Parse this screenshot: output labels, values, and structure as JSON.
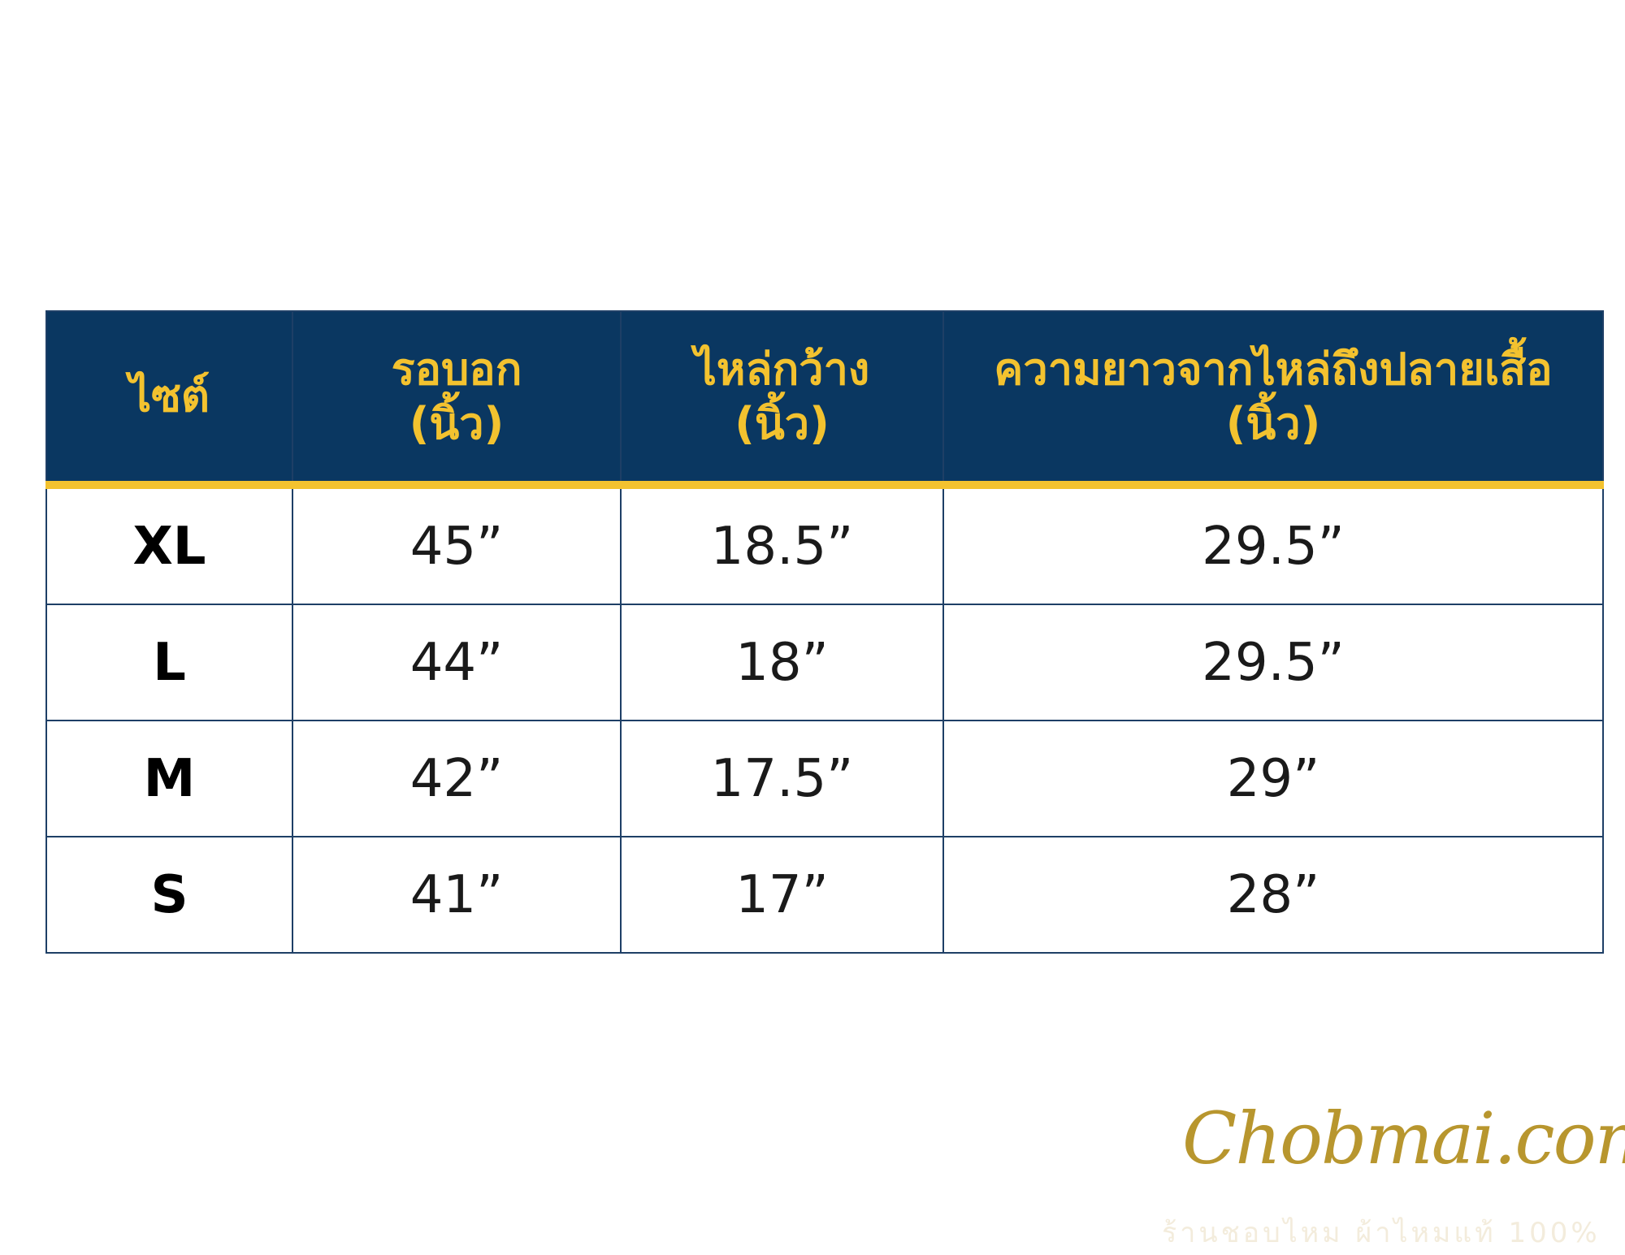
{
  "table": {
    "header": [
      "ไซต์",
      "รอบอก\n(นิ้ว)",
      "ไหล่กว้าง\n(นิ้ว)",
      "ความยาวจากไหล่ถึงปลายเสื้อ\n(นิ้ว)"
    ],
    "rows": [
      [
        "XL",
        "45”",
        "18.5”",
        "29.5”"
      ],
      [
        "L",
        "44”",
        "18”",
        "29.5”"
      ],
      [
        "M",
        "42”",
        "17.5”",
        "29”"
      ],
      [
        "S",
        "41”",
        "17”",
        "28”"
      ]
    ]
  },
  "brand": {
    "logo": "Chobmai.com",
    "tagline": "ร้านชอบไหม ผ้าไหมแท้ 100%"
  }
}
